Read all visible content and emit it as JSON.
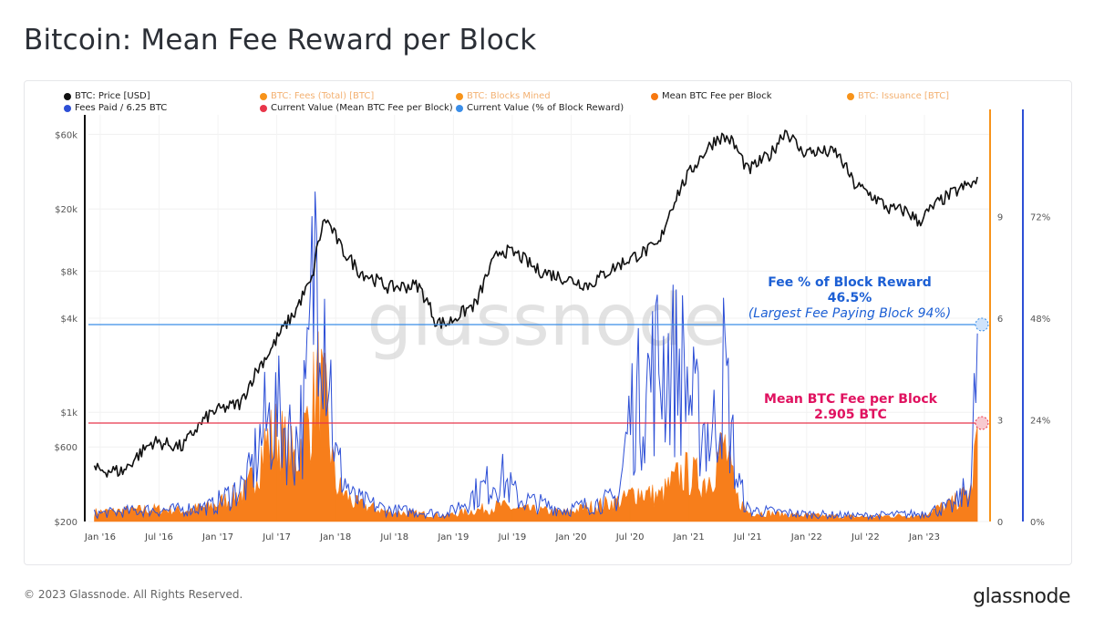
{
  "title": "Bitcoin: Mean Fee Reward per Block",
  "legend": [
    {
      "label": "BTC: Price [USD]",
      "color": "#111111",
      "active": true
    },
    {
      "label": "BTC: Fees (Total) [BTC]",
      "color": "#f7931a",
      "active": false
    },
    {
      "label": "BTC: Blocks Mined",
      "color": "#f7931a",
      "active": false
    },
    {
      "label": "Mean BTC Fee per Block",
      "color": "#f7780f",
      "active": true
    },
    {
      "label": "BTC: Issuance [BTC]",
      "color": "#f7931a",
      "active": false
    },
    {
      "label": "Fees Paid / 6.25 BTC",
      "color": "#2d4fd6",
      "active": true
    },
    {
      "label": "Current Value (Mean BTC Fee per Block)",
      "color": "#e8364a",
      "active": true
    },
    {
      "label": "Current Value (% of Block Reward)",
      "color": "#3b8ee8",
      "active": true
    }
  ],
  "watermark": "glassnode",
  "annotations": {
    "pct_title": "Fee % of Block Reward",
    "pct_value": "46.5%",
    "pct_note": "(Largest Fee Paying Block 94%)",
    "fee_title": "Mean BTC Fee per Block",
    "fee_value": "2.905 BTC"
  },
  "footer": "© 2023 Glassnode. All Rights Reserved.",
  "brand": "glassnode",
  "colors": {
    "price": "#111111",
    "fee": "#f7780f",
    "pct": "#2d4fd6",
    "fee_line": "#e8364a",
    "pct_line": "#3b8ee8",
    "pct_text": "#1c5fd4",
    "fee_text": "#e0115f"
  },
  "chart_data": {
    "type": "line",
    "x_ticks": [
      "Jan '16",
      "Jul '16",
      "Jan '17",
      "Jul '17",
      "Jan '18",
      "Jul '18",
      "Jan '19",
      "Jul '19",
      "Jan '20",
      "Jul '20",
      "Jan '21",
      "Jul '21",
      "Jan '22",
      "Jul '22",
      "Jan '23"
    ],
    "y_left_ticks": [
      "$60k",
      "$20k",
      "$8k",
      "$4k",
      "$1k",
      "$600",
      "$200"
    ],
    "y_left_scale": "log",
    "y_left_range": [
      200,
      80000
    ],
    "y_mid_ticks": [
      "9",
      "6",
      "3",
      "0"
    ],
    "y_mid_range": [
      0,
      12
    ],
    "y_right_ticks": [
      "72%",
      "48%",
      "24%",
      "0%"
    ],
    "y_right_range": [
      0,
      96
    ],
    "series": [
      {
        "name": "BTC: Price [USD]",
        "axis": "left",
        "x": [
          2016.0,
          2016.25,
          2016.5,
          2016.75,
          2017.0,
          2017.25,
          2017.5,
          2017.7,
          2017.85,
          2017.96,
          2018.1,
          2018.25,
          2018.5,
          2018.75,
          2018.9,
          2019.0,
          2019.25,
          2019.45,
          2019.6,
          2019.75,
          2020.0,
          2020.2,
          2020.5,
          2020.8,
          2021.0,
          2021.1,
          2021.3,
          2021.4,
          2021.55,
          2021.75,
          2021.87,
          2022.0,
          2022.3,
          2022.45,
          2022.75,
          2022.9,
          2023.0,
          2023.2,
          2023.4,
          2023.5
        ],
        "y": [
          430,
          420,
          650,
          600,
          1000,
          1150,
          2500,
          4300,
          7000,
          17500,
          11000,
          8000,
          6300,
          6500,
          3800,
          3700,
          5000,
          11000,
          10200,
          8200,
          7200,
          6500,
          9200,
          11800,
          29000,
          38000,
          58000,
          56000,
          35000,
          45000,
          64000,
          47000,
          46000,
          29000,
          20000,
          19500,
          16500,
          23000,
          28000,
          29500
        ]
      },
      {
        "name": "Mean BTC Fee per Block",
        "axis": "mid",
        "x": [
          2016.0,
          2016.5,
          2016.75,
          2017.0,
          2017.3,
          2017.45,
          2017.55,
          2017.7,
          2017.8,
          2017.9,
          2017.97,
          2018.05,
          2018.2,
          2018.5,
          2019.0,
          2019.45,
          2019.6,
          2020.0,
          2020.5,
          2020.6,
          2020.8,
          2021.0,
          2021.2,
          2021.35,
          2021.45,
          2021.55,
          2022.0,
          2022.5,
          2023.0,
          2023.3,
          2023.45,
          2023.5
        ],
        "y": [
          0.3,
          0.4,
          0.35,
          0.5,
          1.0,
          2.5,
          2.8,
          2.0,
          3.0,
          4.5,
          3.5,
          1.2,
          0.6,
          0.3,
          0.2,
          0.5,
          0.4,
          0.3,
          0.7,
          1.0,
          0.8,
          1.6,
          1.3,
          2.5,
          0.8,
          0.3,
          0.2,
          0.15,
          0.2,
          0.6,
          1.0,
          2.905
        ]
      },
      {
        "name": "Fees Paid / 6.25 BTC",
        "axis": "right",
        "x": [
          2016.0,
          2016.45,
          2016.7,
          2017.0,
          2017.3,
          2017.45,
          2017.55,
          2017.7,
          2017.8,
          2017.9,
          2017.96,
          2018.0,
          2018.05,
          2018.2,
          2018.5,
          2019.0,
          2019.45,
          2019.6,
          2020.0,
          2020.45,
          2020.55,
          2020.8,
          2021.0,
          2021.1,
          2021.25,
          2021.35,
          2021.45,
          2021.55,
          2022.0,
          2022.5,
          2023.0,
          2023.3,
          2023.45,
          2023.5
        ],
        "y": [
          2,
          3,
          3,
          4,
          10,
          25,
          28,
          20,
          30,
          85,
          55,
          40,
          16,
          6,
          3,
          2,
          12,
          6,
          3,
          6,
          28,
          42,
          40,
          28,
          22,
          40,
          12,
          3,
          2,
          1.5,
          2,
          4,
          10,
          46.5
        ]
      }
    ],
    "hlines": [
      {
        "name": "Current Value (Mean BTC Fee per Block)",
        "axis": "mid",
        "value": 2.905
      },
      {
        "name": "Current Value (% of Block Reward)",
        "axis": "right",
        "value": 46.5
      }
    ],
    "grid": true
  }
}
